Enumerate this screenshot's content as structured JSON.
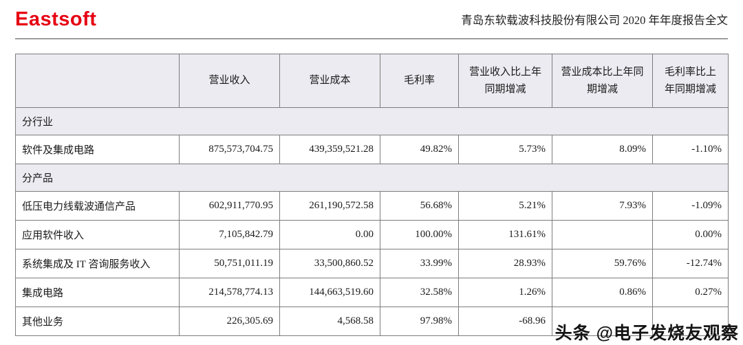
{
  "header": {
    "logo": "Eastsoft",
    "title": "青岛东软载波科技股份有限公司 2020 年年度报告全文"
  },
  "table": {
    "columns": [
      "",
      "营业收入",
      "营业成本",
      "毛利率",
      "营业收入比上年同期增减",
      "营业成本比上年同期增减",
      "毛利率比上年同期增减"
    ],
    "rows": [
      {
        "type": "section",
        "label": "分行业"
      },
      {
        "type": "data",
        "label": "软件及集成电路",
        "values": [
          "875,573,704.75",
          "439,359,521.28",
          "49.82%",
          "5.73%",
          "8.09%",
          "-1.10%"
        ]
      },
      {
        "type": "section",
        "label": "分产品"
      },
      {
        "type": "data",
        "label": "低压电力线载波通信产品",
        "values": [
          "602,911,770.95",
          "261,190,572.58",
          "56.68%",
          "5.21%",
          "7.93%",
          "-1.09%"
        ]
      },
      {
        "type": "data",
        "label": "应用软件收入",
        "values": [
          "7,105,842.79",
          "0.00",
          "100.00%",
          "131.61%",
          "",
          "0.00%"
        ]
      },
      {
        "type": "data",
        "label": "系统集成及 IT 咨询服务收入",
        "values": [
          "50,751,011.19",
          "33,500,860.52",
          "33.99%",
          "28.93%",
          "59.76%",
          "-12.74%"
        ]
      },
      {
        "type": "data",
        "label": "集成电路",
        "values": [
          "214,578,774.13",
          "144,663,519.60",
          "32.58%",
          "1.26%",
          "0.86%",
          "0.27%"
        ]
      },
      {
        "type": "data",
        "label": "其他业务",
        "values": [
          "226,305.69",
          "4,568.58",
          "97.98%",
          "-68.96",
          "",
          ""
        ]
      }
    ]
  },
  "watermark": {
    "badge": "头条",
    "text": "@电子发烧友观察"
  },
  "colors": {
    "logo_red": "#e60012",
    "header_bg": "#ebebf1",
    "border_gray": "#7c7c7c"
  }
}
